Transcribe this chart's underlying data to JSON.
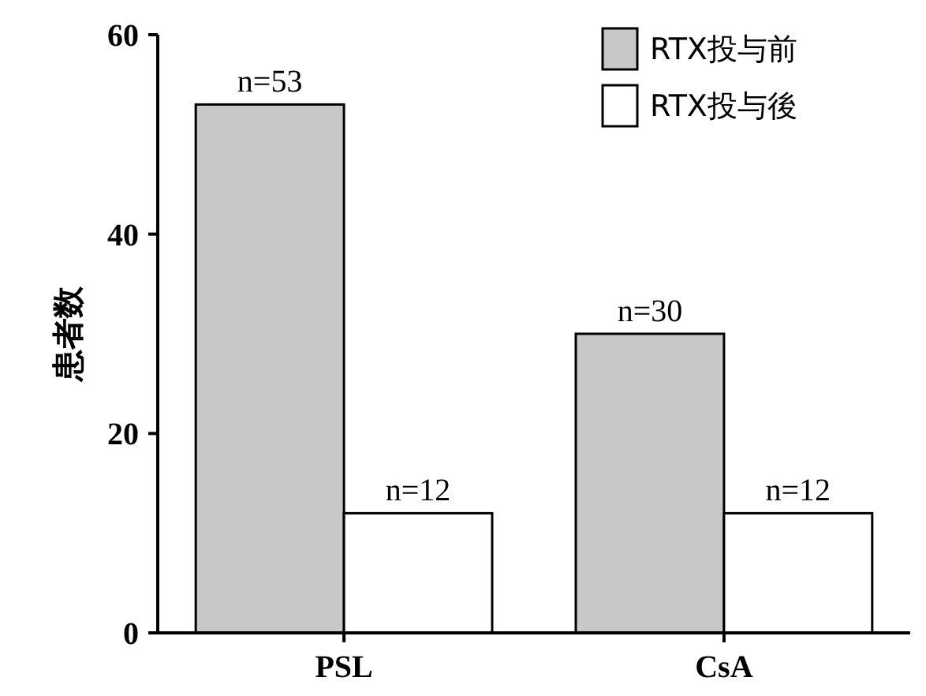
{
  "chart_data": {
    "type": "bar",
    "ylabel": "患者数",
    "categories": [
      "PSL",
      "CsA"
    ],
    "series": [
      {
        "name": "RTX投与前",
        "color": "#c8c8c8",
        "values": [
          53,
          30
        ],
        "value_labels": [
          "n=53",
          "n=30"
        ]
      },
      {
        "name": "RTX投与後",
        "color": "#ffffff",
        "values": [
          12,
          12
        ],
        "value_labels": [
          "n=12",
          "n=12"
        ]
      }
    ],
    "ylim": [
      0,
      60
    ],
    "yticks": [
      0,
      20,
      40,
      60
    ],
    "legend": "top right",
    "grid": false
  }
}
